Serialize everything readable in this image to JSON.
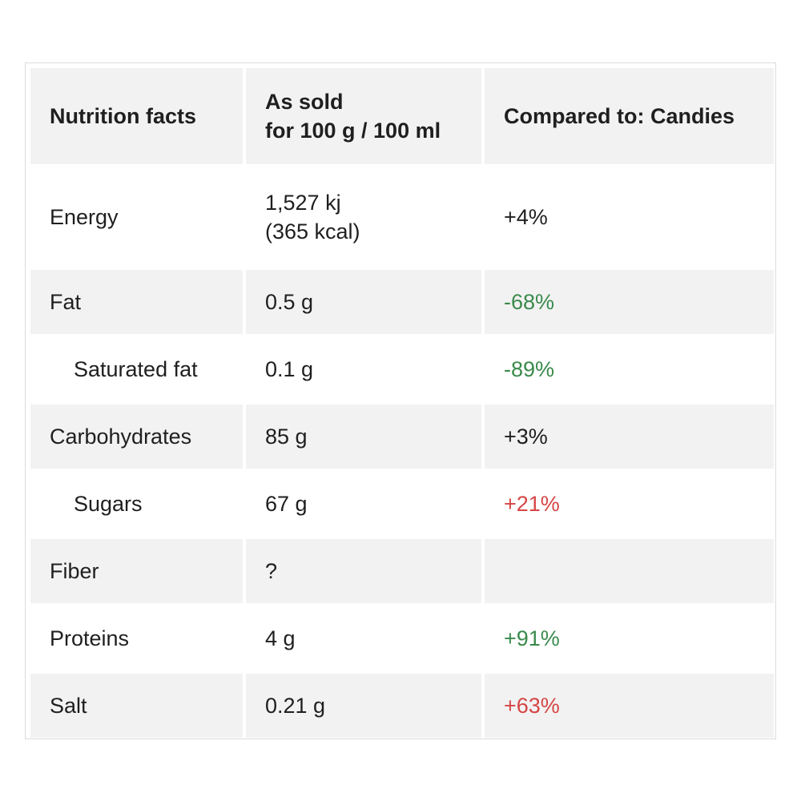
{
  "headers": {
    "col1": "Nutrition facts",
    "col2_line1": "As sold",
    "col2_line2": "for 100 g / 100 ml",
    "col3": "Compared to: Candies"
  },
  "rows": [
    {
      "name": "Energy",
      "value_line1": "1,527 kj",
      "value_line2": "(365 kcal)",
      "compare": "+4%",
      "indent": false,
      "status": "neutral"
    },
    {
      "name": "Fat",
      "value": "0.5 g",
      "compare": "-68%",
      "indent": false,
      "status": "good"
    },
    {
      "name": "Saturated fat",
      "value": "0.1 g",
      "compare": "-89%",
      "indent": true,
      "status": "good"
    },
    {
      "name": "Carbohydrates",
      "value": "85 g",
      "compare": "+3%",
      "indent": false,
      "status": "neutral"
    },
    {
      "name": "Sugars",
      "value": "67 g",
      "compare": "+21%",
      "indent": true,
      "status": "bad"
    },
    {
      "name": "Fiber",
      "value": "?",
      "compare": "",
      "indent": false,
      "status": "neutral"
    },
    {
      "name": "Proteins",
      "value": "4 g",
      "compare": "+91%",
      "indent": false,
      "status": "good"
    },
    {
      "name": "Salt",
      "value": "0.21 g",
      "compare": "+63%",
      "indent": false,
      "status": "bad"
    }
  ],
  "colors": {
    "good": "#3a8a4c",
    "bad": "#d64545",
    "header_bg": "#f2f2f2"
  }
}
